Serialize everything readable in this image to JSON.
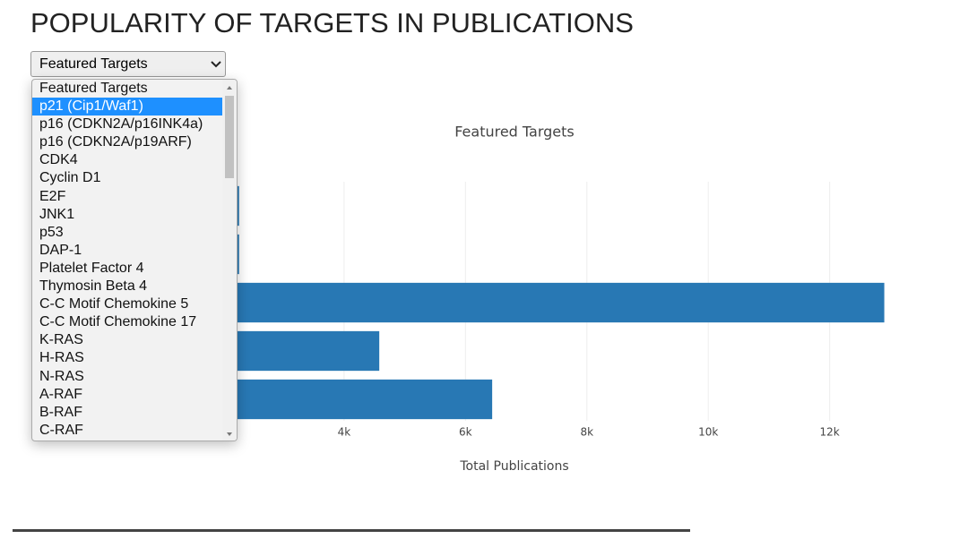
{
  "header": {
    "title": "POPULARITY OF TARGETS IN PUBLICATIONS"
  },
  "select": {
    "selected": "Featured Targets",
    "options": [
      "Featured Targets",
      "p21 (Cip1/Waf1)",
      "p16 (CDKN2A/p16INK4a)",
      "p16 (CDKN2A/p19ARF)",
      "CDK4",
      "Cyclin D1",
      "E2F",
      "JNK1",
      "p53",
      "DAP-1",
      "Platelet Factor 4",
      "Thymosin Beta 4",
      "C-C Motif Chemokine 5",
      "C-C Motif Chemokine 17",
      "K-RAS",
      "H-RAS",
      "N-RAS",
      "A-RAF",
      "B-RAF",
      "C-RAF"
    ],
    "highlighted": 1
  },
  "chart_data": {
    "type": "hbar",
    "title": "Featured Targets",
    "x_label": "Total Publications",
    "categories": [
      null,
      null,
      null,
      null,
      null
    ],
    "values": [
      2270,
      2270,
      12900,
      4580,
      6440
    ],
    "color": "#2878b4",
    "xlim": [
      0,
      13600
    ],
    "xticks": [
      {
        "value": 4000,
        "label": "4k"
      },
      {
        "value": 6000,
        "label": "6k"
      },
      {
        "value": 8000,
        "label": "8k"
      },
      {
        "value": 10000,
        "label": "10k"
      },
      {
        "value": 12000,
        "label": "12k"
      }
    ],
    "grid": true
  }
}
